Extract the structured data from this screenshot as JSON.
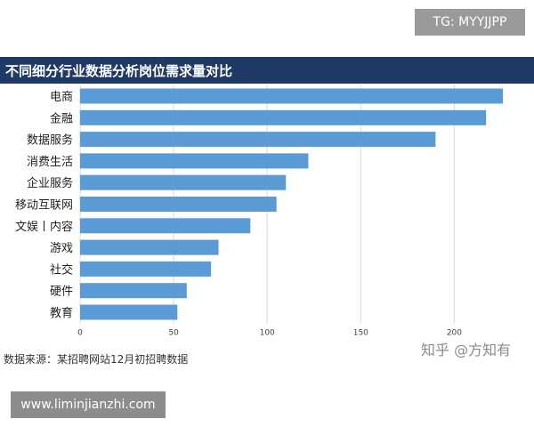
{
  "tg_badge": "TG: MYYJJPP",
  "url_badge": "www.liminjianzhi.com",
  "watermark": "知乎 @方知有",
  "source_note": "数据来源：某招聘网站12月初招聘数据",
  "colors": {
    "bar": "#5b9bd5",
    "title_bg": "#1f3a64",
    "grid": "#d9d9d9"
  },
  "chart_data": {
    "type": "bar",
    "orientation": "horizontal",
    "title": "不同细分行业数据分析岗位需求量对比",
    "categories": [
      "电商",
      "金融",
      "数据服务",
      "消费生活",
      "企业服务",
      "移动互联网",
      "文娱丨内容",
      "游戏",
      "社交",
      "硬件",
      "教育"
    ],
    "values": [
      226,
      217,
      190,
      122,
      110,
      105,
      91,
      74,
      70,
      57,
      52
    ],
    "xlim": [
      0,
      235
    ],
    "xticks": [
      "0",
      "50",
      "100",
      "150",
      "200"
    ],
    "grid": true
  }
}
